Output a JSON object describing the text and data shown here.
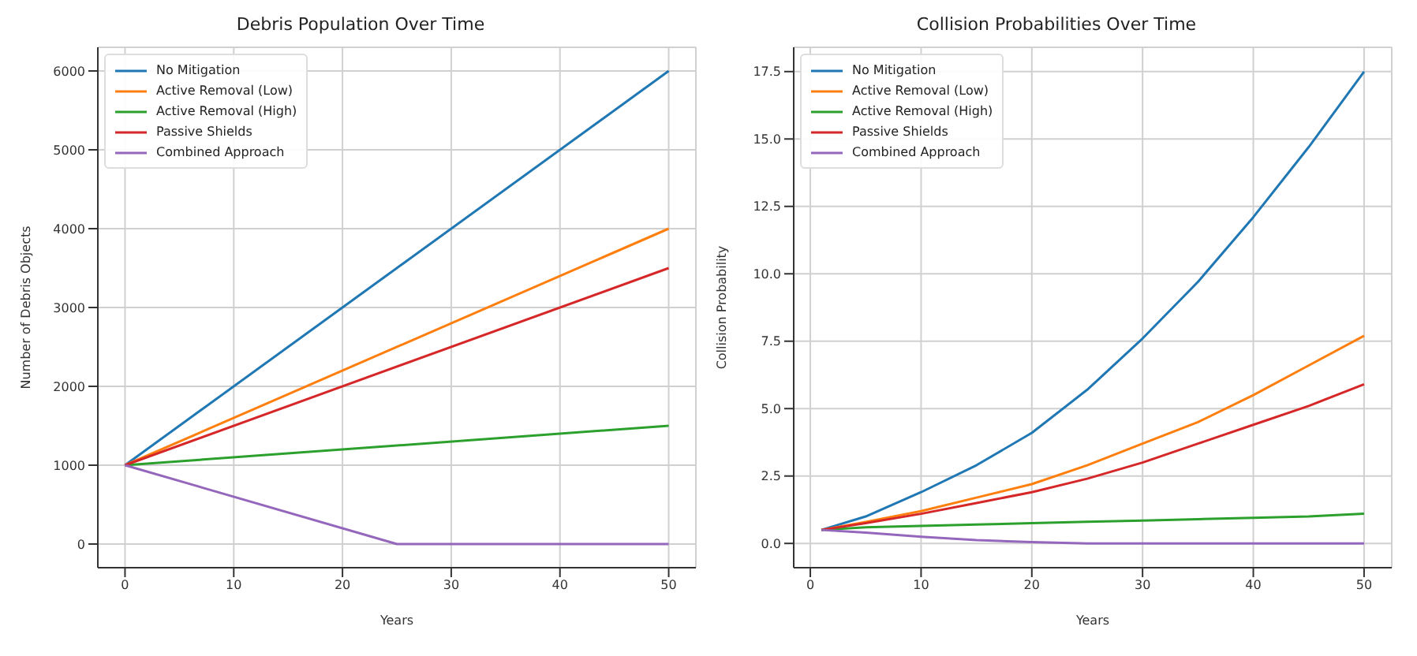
{
  "chart_data": [
    {
      "type": "line",
      "title": "Debris Population Over Time",
      "xlabel": "Years",
      "ylabel": "Number of Debris Objects",
      "xlim": [
        -2.5,
        52.5
      ],
      "xticks": [
        0,
        10,
        20,
        30,
        40,
        50
      ],
      "ylim": [
        -300,
        6300
      ],
      "yticks": [
        0,
        1000,
        2000,
        3000,
        4000,
        5000,
        6000
      ],
      "grid": true,
      "legend": "top left",
      "marker": "none",
      "line_style": "solid",
      "series": [
        {
          "name": "No Mitigation",
          "color": "#1f77b4",
          "x": [
            0,
            50
          ],
          "values": [
            1000,
            6000
          ]
        },
        {
          "name": "Active Removal (Low)",
          "color": "#ff7f0e",
          "x": [
            0,
            50
          ],
          "values": [
            1000,
            4000
          ]
        },
        {
          "name": "Active Removal (High)",
          "color": "#2ca02c",
          "x": [
            0,
            50
          ],
          "values": [
            1000,
            1500
          ]
        },
        {
          "name": "Passive Shields",
          "color": "#d62728",
          "x": [
            0,
            50
          ],
          "values": [
            1000,
            3500
          ]
        },
        {
          "name": "Combined Approach",
          "color": "#9467bd",
          "x": [
            0,
            25,
            50
          ],
          "values": [
            1000,
            0,
            0
          ]
        }
      ]
    },
    {
      "type": "line",
      "title": "Collision Probabilities Over Time",
      "xlabel": "Years",
      "ylabel": "Collision Probability",
      "xlim": [
        -1.5,
        52.5
      ],
      "xticks": [
        0,
        10,
        20,
        30,
        40,
        50
      ],
      "ylim": [
        -0.9,
        18.4
      ],
      "yticks": [
        {
          "value": 0,
          "label": "0.0"
        },
        {
          "value": 2.5,
          "label": "2.5"
        },
        {
          "value": 5,
          "label": "5.0"
        },
        {
          "value": 7.5,
          "label": "7.5"
        },
        {
          "value": 10,
          "label": "10.0"
        },
        {
          "value": 12.5,
          "label": "12.5"
        },
        {
          "value": 15,
          "label": "15.0"
        },
        {
          "value": 17.5,
          "label": "17.5"
        }
      ],
      "grid": true,
      "legend": "top left",
      "marker": "none",
      "line_style": "solid",
      "series": [
        {
          "name": "No Mitigation",
          "color": "#1f77b4",
          "x": [
            1,
            5,
            10,
            15,
            20,
            25,
            30,
            35,
            40,
            45,
            50
          ],
          "values": [
            0.5,
            1.0,
            1.9,
            2.9,
            4.1,
            5.7,
            7.6,
            9.7,
            12.1,
            14.7,
            17.5
          ]
        },
        {
          "name": "Active Removal (Low)",
          "color": "#ff7f0e",
          "x": [
            1,
            5,
            10,
            15,
            20,
            25,
            30,
            35,
            40,
            45,
            50
          ],
          "values": [
            0.5,
            0.8,
            1.2,
            1.7,
            2.2,
            2.9,
            3.7,
            4.5,
            5.5,
            6.6,
            7.7
          ]
        },
        {
          "name": "Active Removal (High)",
          "color": "#2ca02c",
          "x": [
            1,
            5,
            10,
            15,
            20,
            25,
            30,
            35,
            40,
            45,
            50
          ],
          "values": [
            0.5,
            0.6,
            0.65,
            0.7,
            0.75,
            0.8,
            0.85,
            0.9,
            0.95,
            1.0,
            1.1
          ]
        },
        {
          "name": "Passive Shields",
          "color": "#d62728",
          "x": [
            1,
            5,
            10,
            15,
            20,
            25,
            30,
            35,
            40,
            45,
            50
          ],
          "values": [
            0.5,
            0.75,
            1.1,
            1.5,
            1.9,
            2.4,
            3.0,
            3.7,
            4.4,
            5.1,
            5.9
          ]
        },
        {
          "name": "Combined Approach",
          "color": "#9467bd",
          "x": [
            1,
            5,
            10,
            15,
            20,
            25,
            50
          ],
          "values": [
            0.5,
            0.4,
            0.25,
            0.12,
            0.05,
            0,
            0
          ]
        }
      ]
    }
  ]
}
